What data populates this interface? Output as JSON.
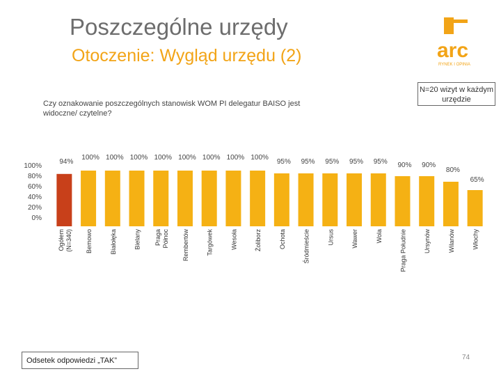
{
  "header": {
    "title": "Poszczególne urzędy",
    "subtitle": "Otoczenie: Wygląd urzędu (2)"
  },
  "logo": {
    "text": "arc",
    "tagline": "RYNEK I OPINIA"
  },
  "question": "Czy oznakowanie poszczególnych stanowisk WOM PI delegatur BAISO jest widoczne/ czytelne?",
  "note": "N=20 wizyt w każdym urzędzie",
  "footer_label": "Odsetek odpowiedzi „TAK”",
  "page_number": "74",
  "colors": {
    "title": "#6d6d6d",
    "subtitle": "#f2a417",
    "bar_highlight": "#c8401a",
    "bar": "#f5b114"
  },
  "chart_data": {
    "type": "bar",
    "categories": [
      "Ogółem (N=340)",
      "Bemowo",
      "Białołęka",
      "Bielany",
      "Praga Północ",
      "Rembertów",
      "Targówek",
      "Wesoła",
      "Żoliborz",
      "Ochota",
      "Śródmieście",
      "Ursus",
      "Wawer",
      "Wola",
      "Praga Południe",
      "Ursynów",
      "Wilanów",
      "Włochy"
    ],
    "category_lines": [
      [
        "Ogółem",
        "(N=340)"
      ],
      [
        "Bemowo"
      ],
      [
        "Białołęka"
      ],
      [
        "Bielany"
      ],
      [
        "Praga",
        "Północ"
      ],
      [
        "Rembertów"
      ],
      [
        "Targówek"
      ],
      [
        "Wesoła"
      ],
      [
        "Żoliborz"
      ],
      [
        "Ochota"
      ],
      [
        "Śródmieście"
      ],
      [
        "Ursus"
      ],
      [
        "Wawer"
      ],
      [
        "Wola"
      ],
      [
        "Praga Południe"
      ],
      [
        "Ursynów"
      ],
      [
        "Wilanów"
      ],
      [
        "Włochy"
      ]
    ],
    "values": [
      94,
      100,
      100,
      100,
      100,
      100,
      100,
      100,
      100,
      95,
      95,
      95,
      95,
      95,
      90,
      90,
      80,
      65
    ],
    "labels": [
      "94%",
      "100%",
      "100%",
      "100%",
      "100%",
      "100%",
      "100%",
      "100%",
      "100%",
      "95%",
      "95%",
      "95%",
      "95%",
      "95%",
      "90%",
      "90%",
      "80%",
      "65%"
    ],
    "highlight_index": 0,
    "yticks": [
      "100%",
      "80%",
      "60%",
      "40%",
      "20%",
      "0%"
    ],
    "ylim": [
      0,
      100
    ],
    "grid": false
  }
}
